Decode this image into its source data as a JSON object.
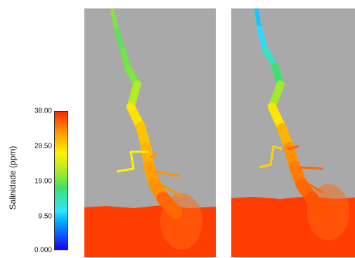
{
  "colorbar": {
    "title": "Salinidade  (ppm)",
    "ticks": [
      "38.00",
      "28.50",
      "19.00",
      "9.50",
      "0.000"
    ]
  },
  "chart_data": {
    "type": "heatmap",
    "colorbar_label": "Salinidade  (ppm)",
    "range": [
      0,
      38
    ],
    "tick_values": [
      38,
      28.5,
      19,
      9.5,
      0
    ],
    "colormap": [
      "#1a00ff",
      "#00a8ff",
      "#2ee6ff",
      "#3fe06a",
      "#9ee92c",
      "#fff200",
      "#ff9900",
      "#ff2a00"
    ],
    "land_color": "#a9a9a9",
    "sea_color": "#ff3d00",
    "panels": [
      {
        "river_salinity_head_to_mouth": [
          20,
          18,
          19,
          20,
          23,
          28,
          30,
          31,
          32,
          33,
          35,
          36
        ]
      },
      {
        "river_salinity_head_to_mouth": [
          8,
          10,
          13,
          16,
          22,
          28,
          31,
          33,
          34,
          35,
          36,
          37
        ]
      }
    ]
  }
}
